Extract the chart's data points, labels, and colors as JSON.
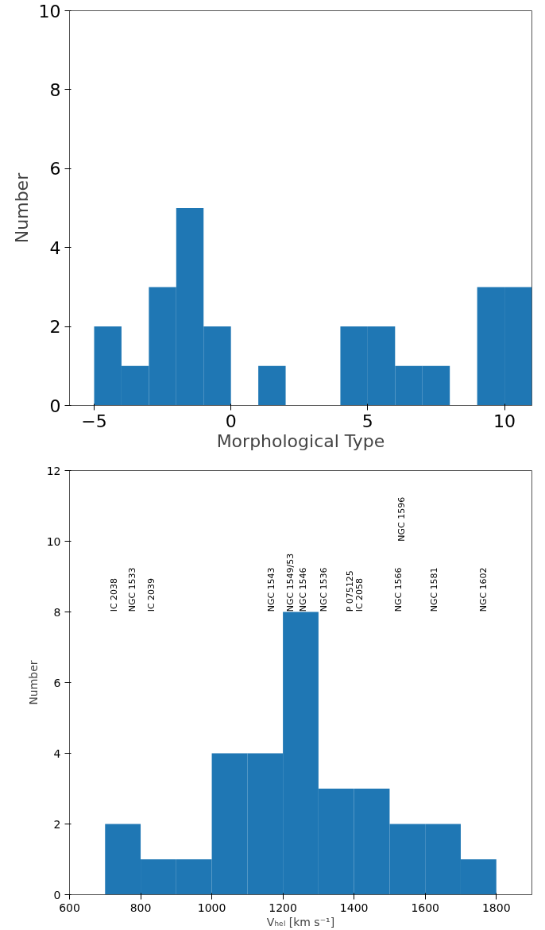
{
  "chart_data": [
    {
      "type": "histogram",
      "xlabel": "Morphological Type",
      "ylabel": "Number",
      "color": "#1f77b4",
      "bins": [
        -5,
        -4,
        -3,
        -2,
        -1,
        0,
        1,
        2,
        3,
        4,
        5,
        6,
        7,
        8,
        9,
        10,
        11
      ],
      "values": [
        2,
        1,
        3,
        5,
        2,
        0,
        1,
        0,
        0,
        2,
        2,
        1,
        1,
        0,
        3,
        3
      ],
      "xlim": [
        -5.9,
        11
      ],
      "ylim": [
        0,
        10
      ],
      "xticks": [
        {
          "value": -5,
          "label": "−5"
        },
        0,
        5,
        10
      ],
      "yticks": [
        0,
        2,
        4,
        6,
        8,
        10
      ],
      "grid": false
    },
    {
      "type": "histogram",
      "xlabel": "Vₕₑₗ [km s⁻¹]",
      "ylabel": "Number",
      "color": "#1f77b4",
      "bins": [
        700,
        800,
        900,
        1000,
        1100,
        1200,
        1300,
        1400,
        1500,
        1600,
        1700,
        1800
      ],
      "values": [
        2,
        1,
        1,
        4,
        4,
        8,
        3,
        3,
        2,
        2,
        1
      ],
      "xlim": [
        600,
        1900
      ],
      "ylim": [
        0,
        12
      ],
      "xticks": [
        600,
        800,
        1000,
        1200,
        1400,
        1600,
        1800
      ],
      "yticks": [
        0,
        2,
        4,
        6,
        8,
        10,
        12
      ],
      "grid": false,
      "annotations": [
        "IC 2038",
        "NGC 1533",
        "IC 2039",
        "NGC 1543",
        "NGC 1549/53",
        "NGC 1546",
        "NGC 1536",
        "P 075125",
        "IC 2058",
        "NGC 1566",
        "NGC 1596",
        "NGC 1581",
        "NGC 1602"
      ]
    }
  ]
}
